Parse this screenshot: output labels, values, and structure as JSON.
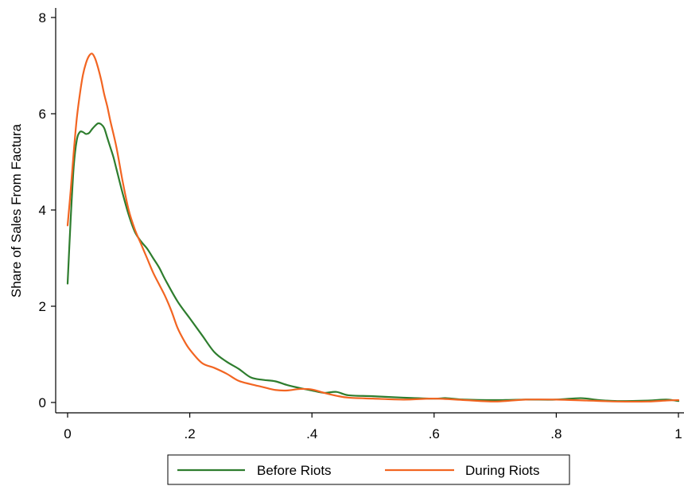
{
  "chart_data": {
    "type": "line",
    "title": "",
    "xlabel": "",
    "ylabel": "Share of Sales From Factura",
    "xlim": [
      0,
      1
    ],
    "ylim": [
      0,
      8
    ],
    "grid": false,
    "legend_position": "bottom",
    "x_ticks": [
      {
        "value": 0,
        "label": "0"
      },
      {
        "value": 0.2,
        "label": ".2"
      },
      {
        "value": 0.4,
        "label": ".4"
      },
      {
        "value": 0.6,
        "label": ".6"
      },
      {
        "value": 0.8,
        "label": ".8"
      },
      {
        "value": 1,
        "label": "1"
      }
    ],
    "y_ticks": [
      {
        "value": 0,
        "label": "0"
      },
      {
        "value": 2,
        "label": "2"
      },
      {
        "value": 4,
        "label": "4"
      },
      {
        "value": 6,
        "label": "6"
      },
      {
        "value": 8,
        "label": "8"
      }
    ],
    "series": [
      {
        "name": "Before Riots",
        "color": "#2e7d2e",
        "x": [
          0,
          0.005,
          0.01,
          0.015,
          0.02,
          0.025,
          0.03,
          0.035,
          0.04,
          0.045,
          0.05,
          0.055,
          0.06,
          0.065,
          0.07,
          0.075,
          0.08,
          0.09,
          0.1,
          0.11,
          0.12,
          0.13,
          0.14,
          0.15,
          0.16,
          0.18,
          0.2,
          0.22,
          0.24,
          0.26,
          0.28,
          0.3,
          0.32,
          0.34,
          0.36,
          0.38,
          0.4,
          0.42,
          0.44,
          0.46,
          0.5,
          0.55,
          0.6,
          0.62,
          0.65,
          0.7,
          0.75,
          0.8,
          0.84,
          0.87,
          0.9,
          0.95,
          0.98,
          1.0
        ],
        "y": [
          2.47,
          3.8,
          4.9,
          5.45,
          5.62,
          5.62,
          5.58,
          5.6,
          5.68,
          5.75,
          5.8,
          5.78,
          5.7,
          5.5,
          5.3,
          5.1,
          4.85,
          4.35,
          3.9,
          3.55,
          3.35,
          3.2,
          3.0,
          2.8,
          2.55,
          2.1,
          1.75,
          1.4,
          1.05,
          0.85,
          0.7,
          0.52,
          0.47,
          0.44,
          0.36,
          0.3,
          0.25,
          0.2,
          0.22,
          0.15,
          0.13,
          0.1,
          0.08,
          0.09,
          0.06,
          0.05,
          0.06,
          0.06,
          0.09,
          0.05,
          0.03,
          0.04,
          0.06,
          0.03
        ]
      },
      {
        "name": "During Riots",
        "color": "#f26522",
        "x": [
          0,
          0.005,
          0.01,
          0.015,
          0.02,
          0.025,
          0.03,
          0.035,
          0.04,
          0.045,
          0.05,
          0.055,
          0.06,
          0.065,
          0.07,
          0.08,
          0.09,
          0.1,
          0.11,
          0.12,
          0.13,
          0.14,
          0.15,
          0.16,
          0.17,
          0.18,
          0.19,
          0.2,
          0.22,
          0.24,
          0.26,
          0.28,
          0.3,
          0.32,
          0.34,
          0.36,
          0.38,
          0.4,
          0.42,
          0.44,
          0.46,
          0.5,
          0.55,
          0.6,
          0.65,
          0.7,
          0.75,
          0.8,
          0.85,
          0.9,
          0.95,
          0.98,
          1.0
        ],
        "y": [
          3.68,
          4.4,
          5.2,
          5.9,
          6.4,
          6.8,
          7.05,
          7.2,
          7.25,
          7.15,
          6.95,
          6.7,
          6.4,
          6.15,
          5.85,
          5.3,
          4.6,
          4.0,
          3.6,
          3.3,
          3.0,
          2.7,
          2.45,
          2.2,
          1.9,
          1.55,
          1.3,
          1.1,
          0.82,
          0.72,
          0.6,
          0.45,
          0.38,
          0.32,
          0.26,
          0.25,
          0.28,
          0.27,
          0.2,
          0.14,
          0.1,
          0.08,
          0.06,
          0.08,
          0.05,
          0.02,
          0.06,
          0.06,
          0.04,
          0.02,
          0.02,
          0.04,
          0.05
        ]
      }
    ]
  }
}
